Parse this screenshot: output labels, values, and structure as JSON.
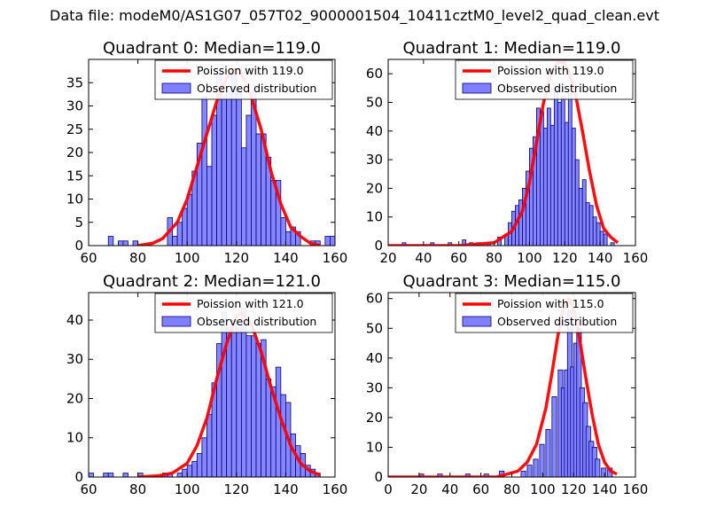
{
  "suptitle": "Data file: modeM0/AS1G07_057T02_9000001504_10411cztM0_level2_quad_clean.evt",
  "colors": {
    "bar_fill": "#7f7fff",
    "bar_edge": "#00007f",
    "curve": "#ff0000",
    "axis": "#000000"
  },
  "chart_data": [
    {
      "type": "bar",
      "title": "Quadrant 0: Median=119.0",
      "legend": {
        "placement": "top-right",
        "entries": [
          "Poission with 119.0",
          "Observed distribution"
        ]
      },
      "xlim": [
        60,
        160
      ],
      "ylim": [
        0,
        40
      ],
      "xticks": [
        "60",
        "80",
        "100",
        "120",
        "140",
        "160"
      ],
      "yticks": [
        "0",
        "5",
        "10",
        "15",
        "20",
        "25",
        "30",
        "35"
      ],
      "bin_width": 2,
      "bars": [
        [
          68,
          2
        ],
        [
          72,
          1
        ],
        [
          74,
          1
        ],
        [
          78,
          1
        ],
        [
          92,
          6
        ],
        [
          94,
          2
        ],
        [
          96,
          5
        ],
        [
          98,
          8
        ],
        [
          100,
          11
        ],
        [
          102,
          16
        ],
        [
          104,
          22
        ],
        [
          106,
          32
        ],
        [
          108,
          17
        ],
        [
          110,
          28
        ],
        [
          112,
          37
        ],
        [
          114,
          32
        ],
        [
          116,
          33
        ],
        [
          118,
          37
        ],
        [
          120,
          33
        ],
        [
          122,
          21
        ],
        [
          124,
          28
        ],
        [
          126,
          33
        ],
        [
          128,
          24
        ],
        [
          130,
          24
        ],
        [
          132,
          19
        ],
        [
          134,
          14
        ],
        [
          136,
          14
        ],
        [
          138,
          6
        ],
        [
          140,
          3
        ],
        [
          142,
          4
        ],
        [
          144,
          3
        ],
        [
          150,
          1
        ],
        [
          152,
          1
        ],
        [
          156,
          2
        ],
        [
          158,
          2
        ]
      ],
      "curve": [
        [
          80,
          0
        ],
        [
          86,
          0.5
        ],
        [
          90,
          1.5
        ],
        [
          96,
          5
        ],
        [
          100,
          10
        ],
        [
          104,
          17
        ],
        [
          108,
          24
        ],
        [
          112,
          31
        ],
        [
          116,
          36
        ],
        [
          119,
          38
        ],
        [
          122,
          37
        ],
        [
          126,
          32
        ],
        [
          130,
          25
        ],
        [
          134,
          16
        ],
        [
          138,
          9
        ],
        [
          142,
          4
        ],
        [
          146,
          2
        ],
        [
          150,
          0.5
        ],
        [
          154,
          0
        ]
      ]
    },
    {
      "type": "bar",
      "title": "Quadrant 1: Median=119.0",
      "legend": {
        "placement": "top-right",
        "entries": [
          "Poission with 119.0",
          "Observed distribution"
        ]
      },
      "xlim": [
        20,
        160
      ],
      "ylim": [
        0,
        65
      ],
      "xticks": [
        "20",
        "40",
        "60",
        "80",
        "100",
        "120",
        "140",
        "160"
      ],
      "yticks": [
        "0",
        "10",
        "20",
        "30",
        "40",
        "50",
        "60"
      ],
      "bin_width": 2,
      "bars": [
        [
          28,
          1
        ],
        [
          44,
          1
        ],
        [
          54,
          1
        ],
        [
          62,
          2
        ],
        [
          66,
          1
        ],
        [
          70,
          1
        ],
        [
          76,
          1
        ],
        [
          82,
          3
        ],
        [
          86,
          4
        ],
        [
          88,
          8
        ],
        [
          90,
          12
        ],
        [
          92,
          14
        ],
        [
          94,
          16
        ],
        [
          96,
          20
        ],
        [
          98,
          26
        ],
        [
          100,
          34
        ],
        [
          102,
          38
        ],
        [
          104,
          48
        ],
        [
          106,
          47
        ],
        [
          108,
          41
        ],
        [
          110,
          48
        ],
        [
          112,
          42
        ],
        [
          114,
          55
        ],
        [
          116,
          50
        ],
        [
          118,
          52
        ],
        [
          120,
          43
        ],
        [
          122,
          53
        ],
        [
          124,
          41
        ],
        [
          126,
          30
        ],
        [
          128,
          20
        ],
        [
          130,
          23
        ],
        [
          132,
          15
        ],
        [
          134,
          14
        ],
        [
          136,
          10
        ],
        [
          138,
          8
        ],
        [
          140,
          5
        ],
        [
          142,
          4
        ],
        [
          146,
          1
        ]
      ],
      "curve": [
        [
          20,
          0
        ],
        [
          60,
          0
        ],
        [
          80,
          1
        ],
        [
          90,
          5
        ],
        [
          96,
          12
        ],
        [
          100,
          22
        ],
        [
          104,
          36
        ],
        [
          108,
          50
        ],
        [
          112,
          60
        ],
        [
          116,
          64
        ],
        [
          119,
          64
        ],
        [
          122,
          61
        ],
        [
          126,
          53
        ],
        [
          130,
          40
        ],
        [
          134,
          26
        ],
        [
          138,
          14
        ],
        [
          142,
          6
        ],
        [
          146,
          3
        ],
        [
          150,
          1
        ]
      ]
    },
    {
      "type": "bar",
      "title": "Quadrant 2: Median=121.0",
      "legend": {
        "placement": "top-right",
        "entries": [
          "Poission with 121.0",
          "Observed distribution"
        ]
      },
      "xlim": [
        60,
        160
      ],
      "ylim": [
        0,
        47
      ],
      "xticks": [
        "60",
        "80",
        "100",
        "120",
        "140",
        "160"
      ],
      "yticks": [
        "0",
        "10",
        "20",
        "30",
        "40"
      ],
      "bin_width": 2,
      "bars": [
        [
          60,
          1
        ],
        [
          66,
          1
        ],
        [
          68,
          1
        ],
        [
          74,
          1
        ],
        [
          80,
          1
        ],
        [
          90,
          1
        ],
        [
          92,
          1
        ],
        [
          96,
          1
        ],
        [
          98,
          2
        ],
        [
          100,
          3
        ],
        [
          102,
          4
        ],
        [
          104,
          6
        ],
        [
          106,
          10
        ],
        [
          108,
          16
        ],
        [
          110,
          24
        ],
        [
          112,
          34
        ],
        [
          114,
          42
        ],
        [
          116,
          38
        ],
        [
          118,
          40
        ],
        [
          120,
          38
        ],
        [
          122,
          43
        ],
        [
          124,
          36
        ],
        [
          126,
          36
        ],
        [
          128,
          34
        ],
        [
          130,
          35
        ],
        [
          132,
          25
        ],
        [
          134,
          23
        ],
        [
          136,
          28
        ],
        [
          138,
          21
        ],
        [
          140,
          19
        ],
        [
          142,
          11
        ],
        [
          144,
          8
        ],
        [
          146,
          6
        ],
        [
          148,
          3
        ],
        [
          150,
          2
        ],
        [
          152,
          1
        ]
      ],
      "curve": [
        [
          80,
          0
        ],
        [
          88,
          0.3
        ],
        [
          94,
          1
        ],
        [
          100,
          3.5
        ],
        [
          104,
          8
        ],
        [
          108,
          15
        ],
        [
          112,
          25
        ],
        [
          116,
          34
        ],
        [
          120,
          41
        ],
        [
          122,
          42
        ],
        [
          126,
          39
        ],
        [
          130,
          32
        ],
        [
          134,
          23
        ],
        [
          138,
          15
        ],
        [
          142,
          8
        ],
        [
          146,
          3.5
        ],
        [
          150,
          1.5
        ],
        [
          154,
          0.5
        ]
      ]
    },
    {
      "type": "bar",
      "title": "Quadrant 3: Median=115.0",
      "legend": {
        "placement": "top-right",
        "entries": [
          "Poission with 115.0",
          "Observed distribution"
        ]
      },
      "xlim": [
        0,
        160
      ],
      "ylim": [
        0,
        62
      ],
      "xticks": [
        "0",
        "20",
        "40",
        "60",
        "80",
        "100",
        "120",
        "140",
        "160"
      ],
      "yticks": [
        "0",
        "10",
        "20",
        "30",
        "40",
        "50",
        "60"
      ],
      "bin_width": 3,
      "bars": [
        [
          20,
          1
        ],
        [
          32,
          1
        ],
        [
          50,
          1
        ],
        [
          62,
          1
        ],
        [
          72,
          2
        ],
        [
          86,
          2
        ],
        [
          90,
          4
        ],
        [
          94,
          6
        ],
        [
          98,
          11
        ],
        [
          102,
          16
        ],
        [
          106,
          27
        ],
        [
          110,
          36
        ],
        [
          112,
          30
        ],
        [
          114,
          36
        ],
        [
          116,
          56
        ],
        [
          118,
          37
        ],
        [
          120,
          45
        ],
        [
          122,
          50
        ],
        [
          124,
          30
        ],
        [
          126,
          25
        ],
        [
          128,
          17
        ],
        [
          130,
          12
        ],
        [
          132,
          10
        ],
        [
          134,
          6
        ],
        [
          138,
          3
        ],
        [
          142,
          3
        ]
      ],
      "curve": [
        [
          0,
          0
        ],
        [
          70,
          0
        ],
        [
          84,
          2
        ],
        [
          90,
          5
        ],
        [
          96,
          11
        ],
        [
          102,
          23
        ],
        [
          106,
          35
        ],
        [
          110,
          48
        ],
        [
          114,
          58
        ],
        [
          117,
          60
        ],
        [
          120,
          57
        ],
        [
          124,
          46
        ],
        [
          128,
          33
        ],
        [
          132,
          21
        ],
        [
          136,
          11
        ],
        [
          140,
          5
        ],
        [
          144,
          2
        ],
        [
          148,
          1
        ]
      ]
    }
  ]
}
